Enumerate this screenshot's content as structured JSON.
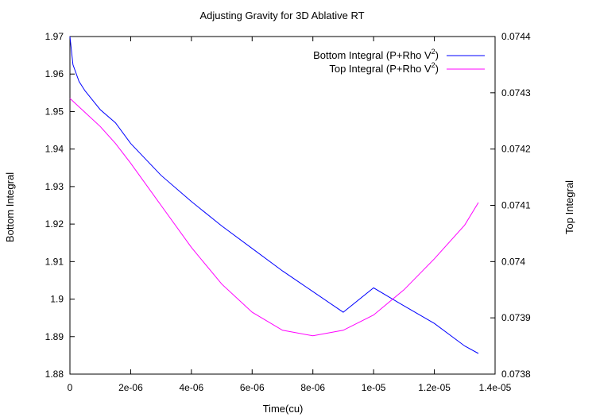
{
  "chart_data": {
    "type": "line",
    "title": "Adjusting Gravity for 3D Ablative RT",
    "xlabel": "Time(cu)",
    "ylabel": "Bottom Integral",
    "y2label": "Top Integral",
    "xlim": [
      0,
      1.4e-05
    ],
    "ylim": [
      1.88,
      1.97
    ],
    "y2lim": [
      0.0738,
      0.0744
    ],
    "x_ticks": [
      0,
      2e-06,
      4e-06,
      6e-06,
      8e-06,
      1e-05,
      1.2e-05,
      1.4e-05
    ],
    "x_tick_labels": [
      "0",
      "2e-06",
      "4e-06",
      "6e-06",
      "8e-06",
      "1e-05",
      "1.2e-05",
      "1.4e-05"
    ],
    "y_ticks": [
      1.88,
      1.89,
      1.9,
      1.91,
      1.92,
      1.93,
      1.94,
      1.95,
      1.96,
      1.97
    ],
    "y_tick_labels": [
      "1.88",
      "1.89",
      "1.9",
      "1.91",
      "1.92",
      "1.93",
      "1.94",
      "1.95",
      "1.96",
      "1.97"
    ],
    "y2_ticks": [
      0.0738,
      0.0739,
      0.074,
      0.0741,
      0.0742,
      0.0743,
      0.0744
    ],
    "y2_tick_labels": [
      "0.0738",
      "0.0739",
      "0.074",
      "0.0741",
      "0.0742",
      "0.0743",
      "0.0744"
    ],
    "grid": false,
    "legend_position": "top-right",
    "series": [
      {
        "name_text": "Bottom Integral (P+Rho V",
        "name_sup": "2",
        "name_tail": ")",
        "axis": "left",
        "color": "#0000ff",
        "x": [
          0,
          1e-07,
          3e-07,
          5e-07,
          1e-06,
          1.5e-06,
          2e-06,
          3e-06,
          4e-06,
          5e-06,
          6e-06,
          7e-06,
          8e-06,
          9e-06,
          1e-05,
          1.1e-05,
          1.2e-05,
          1.3e-05,
          1.345e-05
        ],
        "y": [
          1.97,
          1.9625,
          1.958,
          1.9555,
          1.9505,
          1.947,
          1.9415,
          1.933,
          1.926,
          1.9195,
          1.9135,
          1.9075,
          1.902,
          1.8965,
          1.903,
          1.8982,
          1.8935,
          1.8875,
          1.8855
        ]
      },
      {
        "name_text": "Top Integral (P+Rho V",
        "name_sup": "2",
        "name_tail": ")",
        "axis": "right",
        "color": "#ff00ff",
        "x": [
          0,
          5e-07,
          1e-06,
          1.5e-06,
          2e-06,
          3e-06,
          4e-06,
          5e-06,
          6e-06,
          7e-06,
          8e-06,
          9e-06,
          1e-05,
          1.1e-05,
          1.2e-05,
          1.3e-05,
          1.345e-05
        ],
        "y": [
          0.07429,
          0.074265,
          0.07424,
          0.07421,
          0.074175,
          0.0741,
          0.074025,
          0.07396,
          0.07391,
          0.073878,
          0.073868,
          0.073878,
          0.073905,
          0.07395,
          0.074005,
          0.074065,
          0.074105
        ]
      }
    ]
  }
}
